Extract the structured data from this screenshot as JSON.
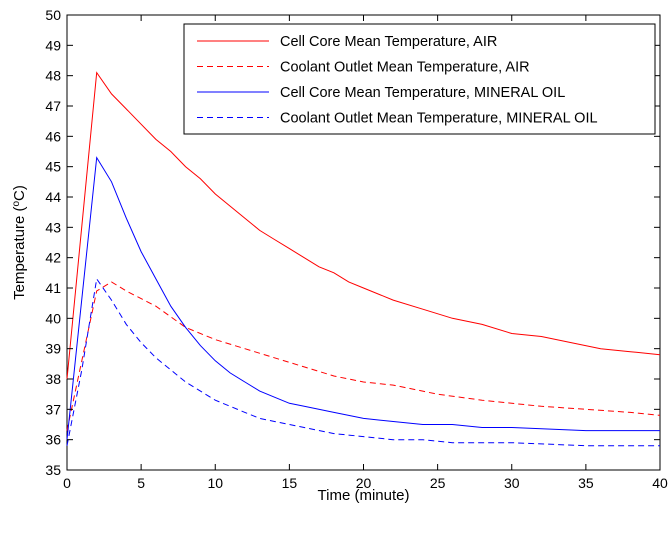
{
  "chart_data": {
    "type": "line",
    "title": "",
    "xlabel": "Time (minute)",
    "ylabel_parts": [
      "Temperature (",
      "o",
      "C)"
    ],
    "xlim": [
      0,
      40
    ],
    "ylim": [
      35,
      50
    ],
    "xticks": [
      0,
      5,
      10,
      15,
      20,
      25,
      30,
      35,
      40
    ],
    "yticks": [
      35,
      36,
      37,
      38,
      39,
      40,
      41,
      42,
      43,
      44,
      45,
      46,
      47,
      48,
      49,
      50
    ],
    "grid": false,
    "legend_position": "top-right",
    "series": [
      {
        "name": "Cell Core Mean Temperature, AIR",
        "color": "#ff0000",
        "style": "solid",
        "x": [
          0,
          2,
          3,
          4,
          5,
          6,
          7,
          8,
          9,
          10,
          11,
          12,
          13,
          14,
          15,
          16,
          17,
          18,
          19,
          20,
          22,
          24,
          26,
          28,
          30,
          32,
          34,
          36,
          38,
          40
        ],
        "y": [
          38.0,
          48.1,
          47.4,
          46.9,
          46.4,
          45.9,
          45.5,
          45.0,
          44.6,
          44.1,
          43.7,
          43.3,
          42.9,
          42.6,
          42.3,
          42.0,
          41.7,
          41.5,
          41.2,
          41.0,
          40.6,
          40.3,
          40.0,
          39.8,
          39.5,
          39.4,
          39.2,
          39.0,
          38.9,
          38.8
        ]
      },
      {
        "name": "Coolant Outlet Mean Temperature, AIR",
        "color": "#ff0000",
        "style": "dashed",
        "x": [
          0,
          1,
          2,
          3,
          4,
          6,
          8,
          10,
          12,
          14,
          16,
          18,
          20,
          22,
          25,
          28,
          30,
          32,
          35,
          38,
          40
        ],
        "y": [
          36.3,
          38.6,
          40.9,
          41.2,
          40.9,
          40.4,
          39.7,
          39.3,
          39.0,
          38.7,
          38.4,
          38.1,
          37.9,
          37.8,
          37.5,
          37.3,
          37.2,
          37.1,
          37.0,
          36.9,
          36.8
        ]
      },
      {
        "name": "Cell Core Mean Temperature, MINERAL OIL",
        "color": "#0000ff",
        "style": "solid",
        "x": [
          0,
          2,
          3,
          4,
          5,
          6,
          7,
          8,
          9,
          10,
          11,
          12,
          13,
          14,
          15,
          16,
          18,
          20,
          22,
          24,
          26,
          28,
          30,
          35,
          40
        ],
        "y": [
          36.0,
          45.3,
          44.5,
          43.3,
          42.2,
          41.3,
          40.4,
          39.7,
          39.1,
          38.6,
          38.2,
          37.9,
          37.6,
          37.4,
          37.2,
          37.1,
          36.9,
          36.7,
          36.6,
          36.5,
          36.5,
          36.4,
          36.4,
          36.3,
          36.3
        ]
      },
      {
        "name": "Coolant Outlet Mean Temperature, MINERAL OIL",
        "color": "#0000ff",
        "style": "dashed",
        "x": [
          0,
          1,
          2,
          3,
          4,
          5,
          6,
          7,
          8,
          9,
          10,
          11,
          12,
          13,
          14,
          15,
          16,
          18,
          20,
          22,
          24,
          26,
          28,
          30,
          35,
          40
        ],
        "y": [
          35.8,
          38.3,
          41.3,
          40.6,
          39.8,
          39.2,
          38.7,
          38.3,
          37.9,
          37.6,
          37.3,
          37.1,
          36.9,
          36.7,
          36.6,
          36.5,
          36.4,
          36.2,
          36.1,
          36.0,
          36.0,
          35.9,
          35.9,
          35.9,
          35.8,
          35.8
        ]
      }
    ]
  }
}
